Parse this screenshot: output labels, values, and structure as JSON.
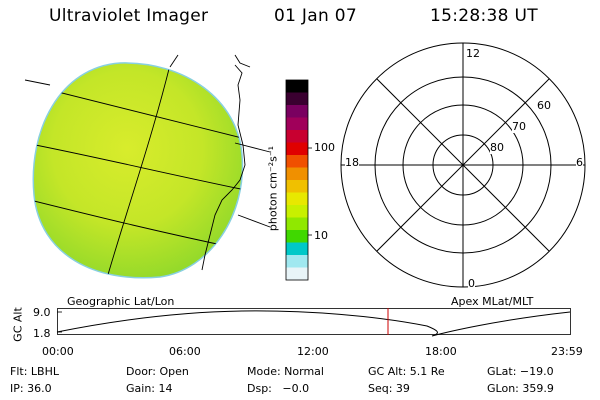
{
  "header": {
    "instrument": "Ultraviolet Imager",
    "date": "01 Jan 07",
    "time": "15:28:38 UT"
  },
  "colorbar": {
    "unit_label": "photon cm⁻²s⁻¹",
    "ticks": [
      "100",
      "10"
    ],
    "colors": [
      "#000000",
      "#3a0030",
      "#7a0060",
      "#a0005a",
      "#c80030",
      "#e00000",
      "#f05000",
      "#f09000",
      "#f0c000",
      "#e8e800",
      "#c8f000",
      "#90e800",
      "#40d800",
      "#00c8c8",
      "#a0e8f0",
      "#e8f4f8"
    ]
  },
  "polar": {
    "labels": {
      "top": "12",
      "bottom": "0",
      "left": "18",
      "right": "6"
    },
    "rings": [
      "60",
      "70",
      "80"
    ]
  },
  "map_titles": {
    "left": "Geographic Lat/Lon",
    "right": "Apex MLat/MLT"
  },
  "orbit_plot": {
    "ylabel": "GC Alt",
    "y_top": "9.0",
    "y_bottom": "1.8",
    "x_ticks": [
      "00:00",
      "06:00",
      "12:00",
      "18:00",
      "23:59"
    ],
    "marker_color": "#cc0000"
  },
  "footer": {
    "row1": [
      "Flt: LBHL",
      "Door: Open",
      "Mode: Normal",
      "GC Alt: 5.1 Re",
      "GLat: −19.0"
    ],
    "row2": [
      "IP: 36.0",
      "Gain: 14",
      "Dsp:   −0.0",
      "Seq: 39",
      "GLon: 359.9"
    ]
  }
}
